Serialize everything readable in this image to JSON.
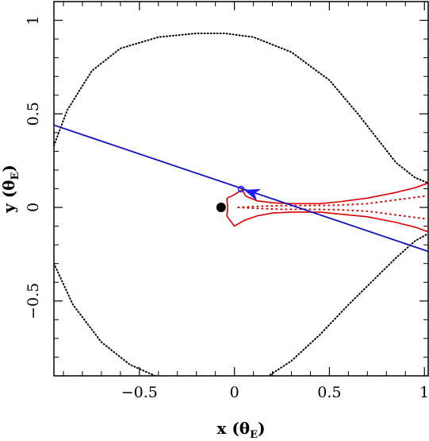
{
  "chart_data": {
    "type": "scatter",
    "title": "",
    "xlabel": "x (θ",
    "xlabel_sub": "E",
    "xlabel_close": ")",
    "ylabel": "y (θ",
    "ylabel_sub": "E",
    "ylabel_close": ")",
    "xlim": [
      -0.95,
      1.02
    ],
    "ylim": [
      -0.9,
      1.1
    ],
    "x_ticks": [
      -0.5,
      0,
      0.5,
      1
    ],
    "x_tick_labels": [
      "−0.5",
      "0",
      "0.5",
      "1"
    ],
    "y_ticks": [
      -0.5,
      0,
      0.5,
      1
    ],
    "y_tick_labels": [
      "−0.5",
      "0",
      "0.5",
      "1"
    ],
    "grid": false,
    "colors": {
      "critical_curve": "#000000",
      "caustic": "#dd0000",
      "trajectory": "#1010c0",
      "arrow": "#1a1aff",
      "lens": "#000000"
    },
    "lens": {
      "x": -0.07,
      "y": 0.0
    },
    "trajectory": {
      "x": [
        -0.95,
        1.02
      ],
      "y": [
        0.44,
        -0.235
      ]
    },
    "source_marker": {
      "x": 0.035,
      "y": 0.098
    },
    "arrow": {
      "x": 0.09,
      "y": 0.08,
      "direction": "left"
    },
    "critical_curve": {
      "top": [
        [
          -0.95,
          0.33
        ],
        [
          -0.88,
          0.52
        ],
        [
          -0.75,
          0.73
        ],
        [
          -0.6,
          0.85
        ],
        [
          -0.4,
          0.91
        ],
        [
          -0.2,
          0.93
        ],
        [
          -0.05,
          0.93
        ],
        [
          0.1,
          0.91
        ],
        [
          0.3,
          0.83
        ],
        [
          0.5,
          0.68
        ],
        [
          0.65,
          0.5
        ],
        [
          0.75,
          0.37
        ],
        [
          0.85,
          0.24
        ],
        [
          0.95,
          0.16
        ],
        [
          1.02,
          0.13
        ]
      ],
      "bottom": [
        [
          -0.95,
          -0.3
        ],
        [
          -0.85,
          -0.52
        ],
        [
          -0.7,
          -0.72
        ],
        [
          -0.55,
          -0.84
        ],
        [
          -0.35,
          -0.93
        ],
        [
          -0.2,
          -0.96
        ],
        [
          0.0,
          -0.97
        ],
        [
          0.15,
          -0.92
        ],
        [
          0.3,
          -0.82
        ],
        [
          0.45,
          -0.68
        ],
        [
          0.6,
          -0.52
        ],
        [
          0.75,
          -0.37
        ],
        [
          0.85,
          -0.27
        ],
        [
          0.95,
          -0.18
        ],
        [
          1.02,
          -0.14
        ]
      ]
    },
    "caustic": {
      "solid": [
        [
          -0.035,
          0.0
        ],
        [
          -0.04,
          0.045
        ],
        [
          -0.03,
          0.055
        ],
        [
          -0.015,
          0.06
        ],
        [
          0.01,
          0.075
        ],
        [
          0.04,
          0.095
        ],
        [
          0.06,
          0.06
        ],
        [
          0.12,
          0.035
        ],
        [
          0.2,
          0.025
        ],
        [
          0.3,
          0.02
        ],
        [
          0.45,
          0.02
        ],
        [
          0.55,
          0.03
        ],
        [
          0.7,
          0.05
        ],
        [
          0.85,
          0.08
        ],
        [
          0.95,
          0.105
        ],
        [
          1.02,
          0.13
        ]
      ],
      "solid_lower": [
        [
          -0.035,
          0.0
        ],
        [
          -0.04,
          -0.045
        ],
        [
          -0.03,
          -0.06
        ],
        [
          -0.015,
          -0.08
        ],
        [
          0.0,
          -0.1
        ],
        [
          0.05,
          -0.07
        ],
        [
          0.12,
          -0.045
        ],
        [
          0.2,
          -0.03
        ],
        [
          0.3,
          -0.025
        ],
        [
          0.45,
          -0.025
        ],
        [
          0.55,
          -0.035
        ],
        [
          0.7,
          -0.05
        ],
        [
          0.85,
          -0.08
        ],
        [
          0.95,
          -0.105
        ],
        [
          1.02,
          -0.13
        ]
      ],
      "dotted_inner": [
        [
          0.02,
          0.0
        ],
        [
          0.1,
          0.005
        ],
        [
          0.25,
          0.01
        ],
        [
          0.4,
          0.01
        ],
        [
          0.55,
          0.012
        ],
        [
          0.7,
          0.02
        ],
        [
          0.85,
          0.04
        ],
        [
          1.0,
          0.06
        ]
      ],
      "dotted_inner_lower": [
        [
          0.02,
          0.0
        ],
        [
          0.1,
          -0.005
        ],
        [
          0.25,
          -0.01
        ],
        [
          0.4,
          -0.01
        ],
        [
          0.55,
          -0.012
        ],
        [
          0.7,
          -0.02
        ],
        [
          0.85,
          -0.04
        ],
        [
          1.0,
          -0.06
        ]
      ]
    }
  }
}
